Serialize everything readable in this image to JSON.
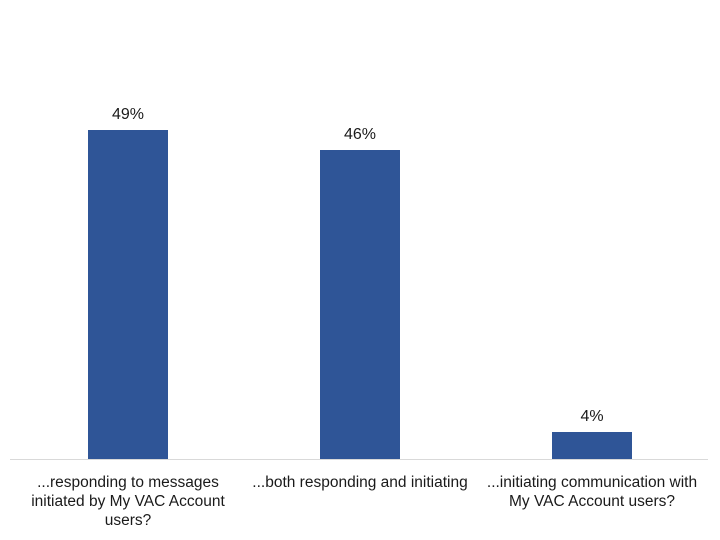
{
  "chart_data": {
    "type": "bar",
    "title": "",
    "xlabel": "",
    "ylabel": "",
    "categories": [
      "...responding to messages initiated by My VAC Account users?",
      "...both responding and initiating",
      "...initiating communication with My VAC Account users?"
    ],
    "values": [
      49,
      46,
      4
    ],
    "value_labels": [
      "49%",
      "46%",
      "4%"
    ],
    "ylim": [
      0,
      68
    ],
    "grid": false,
    "legend": null,
    "bar_color": "#2F5597"
  }
}
